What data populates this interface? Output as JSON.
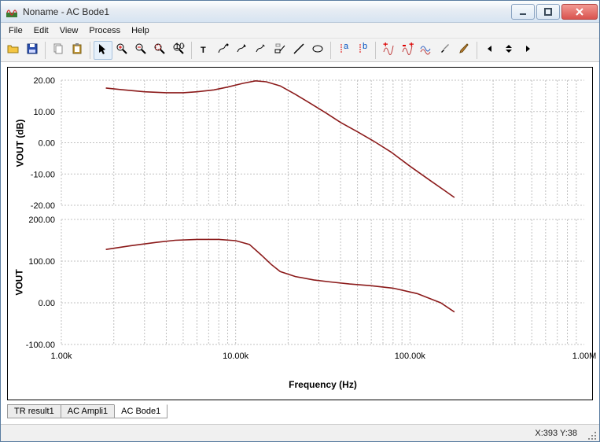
{
  "window": {
    "title": "Noname - AC Bode1"
  },
  "menu": [
    "File",
    "Edit",
    "View",
    "Process",
    "Help"
  ],
  "toolbar_icons": [
    "open-icon",
    "save-icon",
    "|",
    "copy-icon",
    "paste-icon",
    "|",
    "pointer-icon",
    "zoom-in-icon",
    "zoom-out-icon",
    "zoom-region-icon",
    "zoom-100-icon",
    "|",
    "text-icon",
    "line-tool-icon",
    "annotate-open-icon",
    "annotate-close-icon",
    "label-icon",
    "marker-line-icon",
    "ellipse-icon",
    "|",
    "cursor-a-icon",
    "cursor-b-icon",
    "|",
    "trace-add-plus-icon",
    "trace-remove-minus-icon",
    "trace-wave-icon",
    "pipette-icon",
    "pen-icon",
    "|",
    "arrow-left-icon",
    "arrows-updown-icon",
    "arrow-right-icon"
  ],
  "tabs": {
    "items": [
      "TR result1",
      "AC Ampli1",
      "AC Bode1"
    ],
    "active": 2
  },
  "status": {
    "text": "X:393  Y:38"
  },
  "plot": {
    "background_color": "#ffffff",
    "grid_color": "#c0c0c0",
    "xlabel": "Frequency (Hz)",
    "xscale": "log",
    "xlim": [
      1000,
      1000000
    ],
    "xticks": [
      1000,
      10000,
      100000,
      1000000
    ],
    "xtick_labels": [
      "1.00k",
      "10.00k",
      "100.00k",
      "1.00M"
    ],
    "panels": [
      {
        "ylabel": "VOUT (dB)",
        "ylim": [
          -20,
          20
        ],
        "ytick_step": 10,
        "yticks": [
          -20,
          -10,
          0,
          10,
          20
        ],
        "ytick_labels": [
          "-20.00",
          "-10.00",
          "0.00",
          "10.00",
          "20.00"
        ],
        "series": [
          {
            "name": "vout_db",
            "color": "#8b1a1a",
            "line_width": 1.6,
            "points": [
              [
                1800,
                17.5
              ],
              [
                2200,
                17.0
              ],
              [
                3000,
                16.3
              ],
              [
                4000,
                16.0
              ],
              [
                5000,
                16.0
              ],
              [
                6000,
                16.3
              ],
              [
                7500,
                16.9
              ],
              [
                9000,
                17.8
              ],
              [
                11000,
                19.0
              ],
              [
                13000,
                19.8
              ],
              [
                15000,
                19.5
              ],
              [
                18000,
                18.2
              ],
              [
                22000,
                15.5
              ],
              [
                27000,
                12.5
              ],
              [
                33000,
                9.5
              ],
              [
                40000,
                6.5
              ],
              [
                50000,
                3.5
              ],
              [
                62000,
                0.5
              ],
              [
                78000,
                -3.0
              ],
              [
                100000,
                -7.5
              ],
              [
                130000,
                -12.0
              ],
              [
                160000,
                -15.5
              ],
              [
                180000,
                -17.5
              ]
            ]
          }
        ]
      },
      {
        "ylabel": "VOUT",
        "ylim": [
          -100,
          200
        ],
        "ytick_step": 100,
        "yticks": [
          -100,
          0,
          100,
          200
        ],
        "ytick_labels": [
          "-100.00",
          "0.00",
          "100.00",
          "200.00"
        ],
        "series": [
          {
            "name": "vout_phase",
            "color": "#8b1a1a",
            "line_width": 1.6,
            "points": [
              [
                1800,
                128
              ],
              [
                2500,
                137
              ],
              [
                3500,
                145
              ],
              [
                4500,
                150
              ],
              [
                6000,
                152
              ],
              [
                8000,
                152
              ],
              [
                10000,
                149
              ],
              [
                12000,
                140
              ],
              [
                14000,
                115
              ],
              [
                16000,
                92
              ],
              [
                18000,
                75
              ],
              [
                22000,
                63
              ],
              [
                28000,
                55
              ],
              [
                35000,
                50
              ],
              [
                45000,
                45
              ],
              [
                60000,
                41
              ],
              [
                80000,
                35
              ],
              [
                110000,
                22
              ],
              [
                150000,
                0
              ],
              [
                180000,
                -22
              ]
            ]
          }
        ]
      }
    ]
  }
}
